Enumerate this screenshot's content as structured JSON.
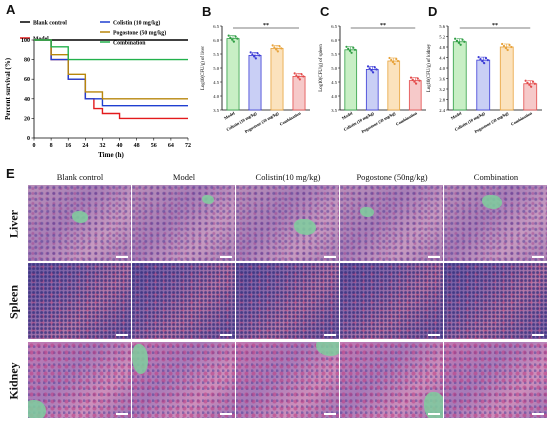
{
  "panel_letters": {
    "a": "A",
    "b": "B",
    "c": "C",
    "d": "D",
    "e": "E"
  },
  "significance": "**",
  "panel_a_legend": [
    {
      "label": "Blank control",
      "color": "#000000"
    },
    {
      "label": "Model",
      "color": "#e31a1c"
    },
    {
      "label": "Colistin (10 mg/kg)",
      "color": "#1f3fd1"
    },
    {
      "label": "Pogostone (50 mg/kg)",
      "color": "#b8860b"
    },
    {
      "label": "Combination",
      "color": "#22b14c"
    }
  ],
  "chart_data": [
    {
      "type": "line",
      "panel": "A",
      "xlabel": "Time (h)",
      "ylabel": "Percent survival (%)",
      "xticks": [
        "0",
        "8",
        "16",
        "24",
        "32",
        "40",
        "48",
        "56",
        "64",
        "72"
      ],
      "yticks": [
        "0",
        "20",
        "40",
        "60",
        "80",
        "100"
      ],
      "xlim": [
        0,
        72
      ],
      "ylim": [
        0,
        100
      ],
      "step": true,
      "series": [
        {
          "name": "Blank control",
          "color": "#000000",
          "x": [
            0,
            72
          ],
          "y": [
            100,
            100
          ]
        },
        {
          "name": "Model",
          "color": "#e31a1c",
          "x": [
            0,
            8,
            16,
            24,
            28,
            32,
            40,
            72
          ],
          "y": [
            100,
            80,
            60,
            40,
            30,
            25,
            20,
            20
          ]
        },
        {
          "name": "Colistin (10 mg/kg)",
          "color": "#1f3fd1",
          "x": [
            0,
            8,
            16,
            24,
            32,
            72
          ],
          "y": [
            100,
            80,
            60,
            40,
            33,
            33
          ]
        },
        {
          "name": "Pogostone (50 mg/kg)",
          "color": "#b8860b",
          "x": [
            0,
            8,
            16,
            24,
            32,
            72
          ],
          "y": [
            100,
            85,
            65,
            47,
            40,
            40
          ]
        },
        {
          "name": "Combination",
          "color": "#22b14c",
          "x": [
            0,
            8,
            16,
            72
          ],
          "y": [
            100,
            93,
            80,
            80
          ]
        }
      ]
    },
    {
      "type": "bar",
      "panel": "B",
      "ylabel": "Log10(CFU/g) of liver",
      "categories": [
        "Model",
        "Colistin (10 mg/kg)",
        "Pogostone (50 mg/kg)",
        "Combination"
      ],
      "values": [
        6.05,
        5.45,
        5.7,
        4.7
      ],
      "colors": [
        "#2f9e44",
        "#3b3bd6",
        "#e8a33c",
        "#e34b4b"
      ],
      "fills": [
        "#c8efc5",
        "#c9cff5",
        "#fbe2bd",
        "#f6c9c9"
      ],
      "ylim": [
        3.5,
        6.5
      ],
      "yticks": [
        "3.5",
        "4.0",
        "4.5",
        "5.0",
        "5.5",
        "6.0",
        "6.5"
      ]
    },
    {
      "type": "bar",
      "panel": "C",
      "ylabel": "Log10(CFU/g) of spleen",
      "categories": [
        "Model",
        "Colistin (10 mg/kg)",
        "Pogostone (50 mg/kg)",
        "Combination"
      ],
      "values": [
        5.65,
        4.95,
        5.25,
        4.55
      ],
      "colors": [
        "#2f9e44",
        "#3b3bd6",
        "#e8a33c",
        "#e34b4b"
      ],
      "fills": [
        "#c8efc5",
        "#c9cff5",
        "#fbe2bd",
        "#f6c9c9"
      ],
      "ylim": [
        3.5,
        6.5
      ],
      "yticks": [
        "3.5",
        "4.0",
        "4.5",
        "5.0",
        "5.5",
        "6.0",
        "6.5"
      ]
    },
    {
      "type": "bar",
      "panel": "D",
      "ylabel": "Log10(CFU/g) of kidney",
      "categories": [
        "Model",
        "Colistin (10 mg/kg)",
        "Pogostone (50 mg/kg)",
        "Combination"
      ],
      "values": [
        5.0,
        4.3,
        4.8,
        3.4
      ],
      "colors": [
        "#2f9e44",
        "#3b3bd6",
        "#e8a33c",
        "#e34b4b"
      ],
      "fills": [
        "#c8efc5",
        "#c9cff5",
        "#fbe2bd",
        "#f6c9c9"
      ],
      "ylim": [
        2.4,
        5.6
      ],
      "yticks": [
        "2.4",
        "2.8",
        "3.2",
        "3.6",
        "4.0",
        "4.4",
        "4.8",
        "5.2",
        "5.6"
      ]
    }
  ],
  "histology": {
    "columns": [
      "Blank control",
      "Model",
      "Colistin(10 mg/kg)",
      "Pogostone (50ng/kg)",
      "Combination"
    ],
    "rows": [
      "Liver",
      "Spleen",
      "Kidney"
    ]
  }
}
